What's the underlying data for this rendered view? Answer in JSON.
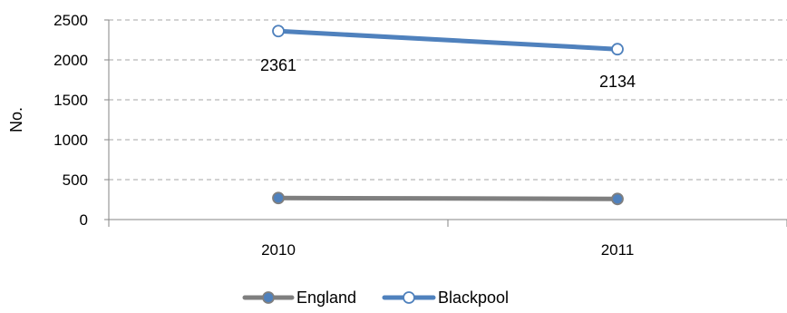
{
  "chart_data": {
    "type": "line",
    "title": "",
    "xlabel": "",
    "ylabel": "No.",
    "categories": [
      "2010",
      "2011"
    ],
    "ylim": [
      0,
      2500
    ],
    "yticks": [
      0,
      500,
      1000,
      1500,
      2000,
      2500
    ],
    "grid": true,
    "legend_position": "bottom",
    "series": [
      {
        "name": "England",
        "values": [
          270,
          258
        ],
        "color": "#7f7f7f",
        "marker_fill": "#4f81bd",
        "marker_stroke": "#7f7f7f",
        "data_labels": false
      },
      {
        "name": "Blackpool",
        "values": [
          2361,
          2134
        ],
        "color": "#4f81bd",
        "marker_fill": "#ffffff",
        "marker_stroke": "#4f81bd",
        "data_labels": true
      }
    ]
  }
}
